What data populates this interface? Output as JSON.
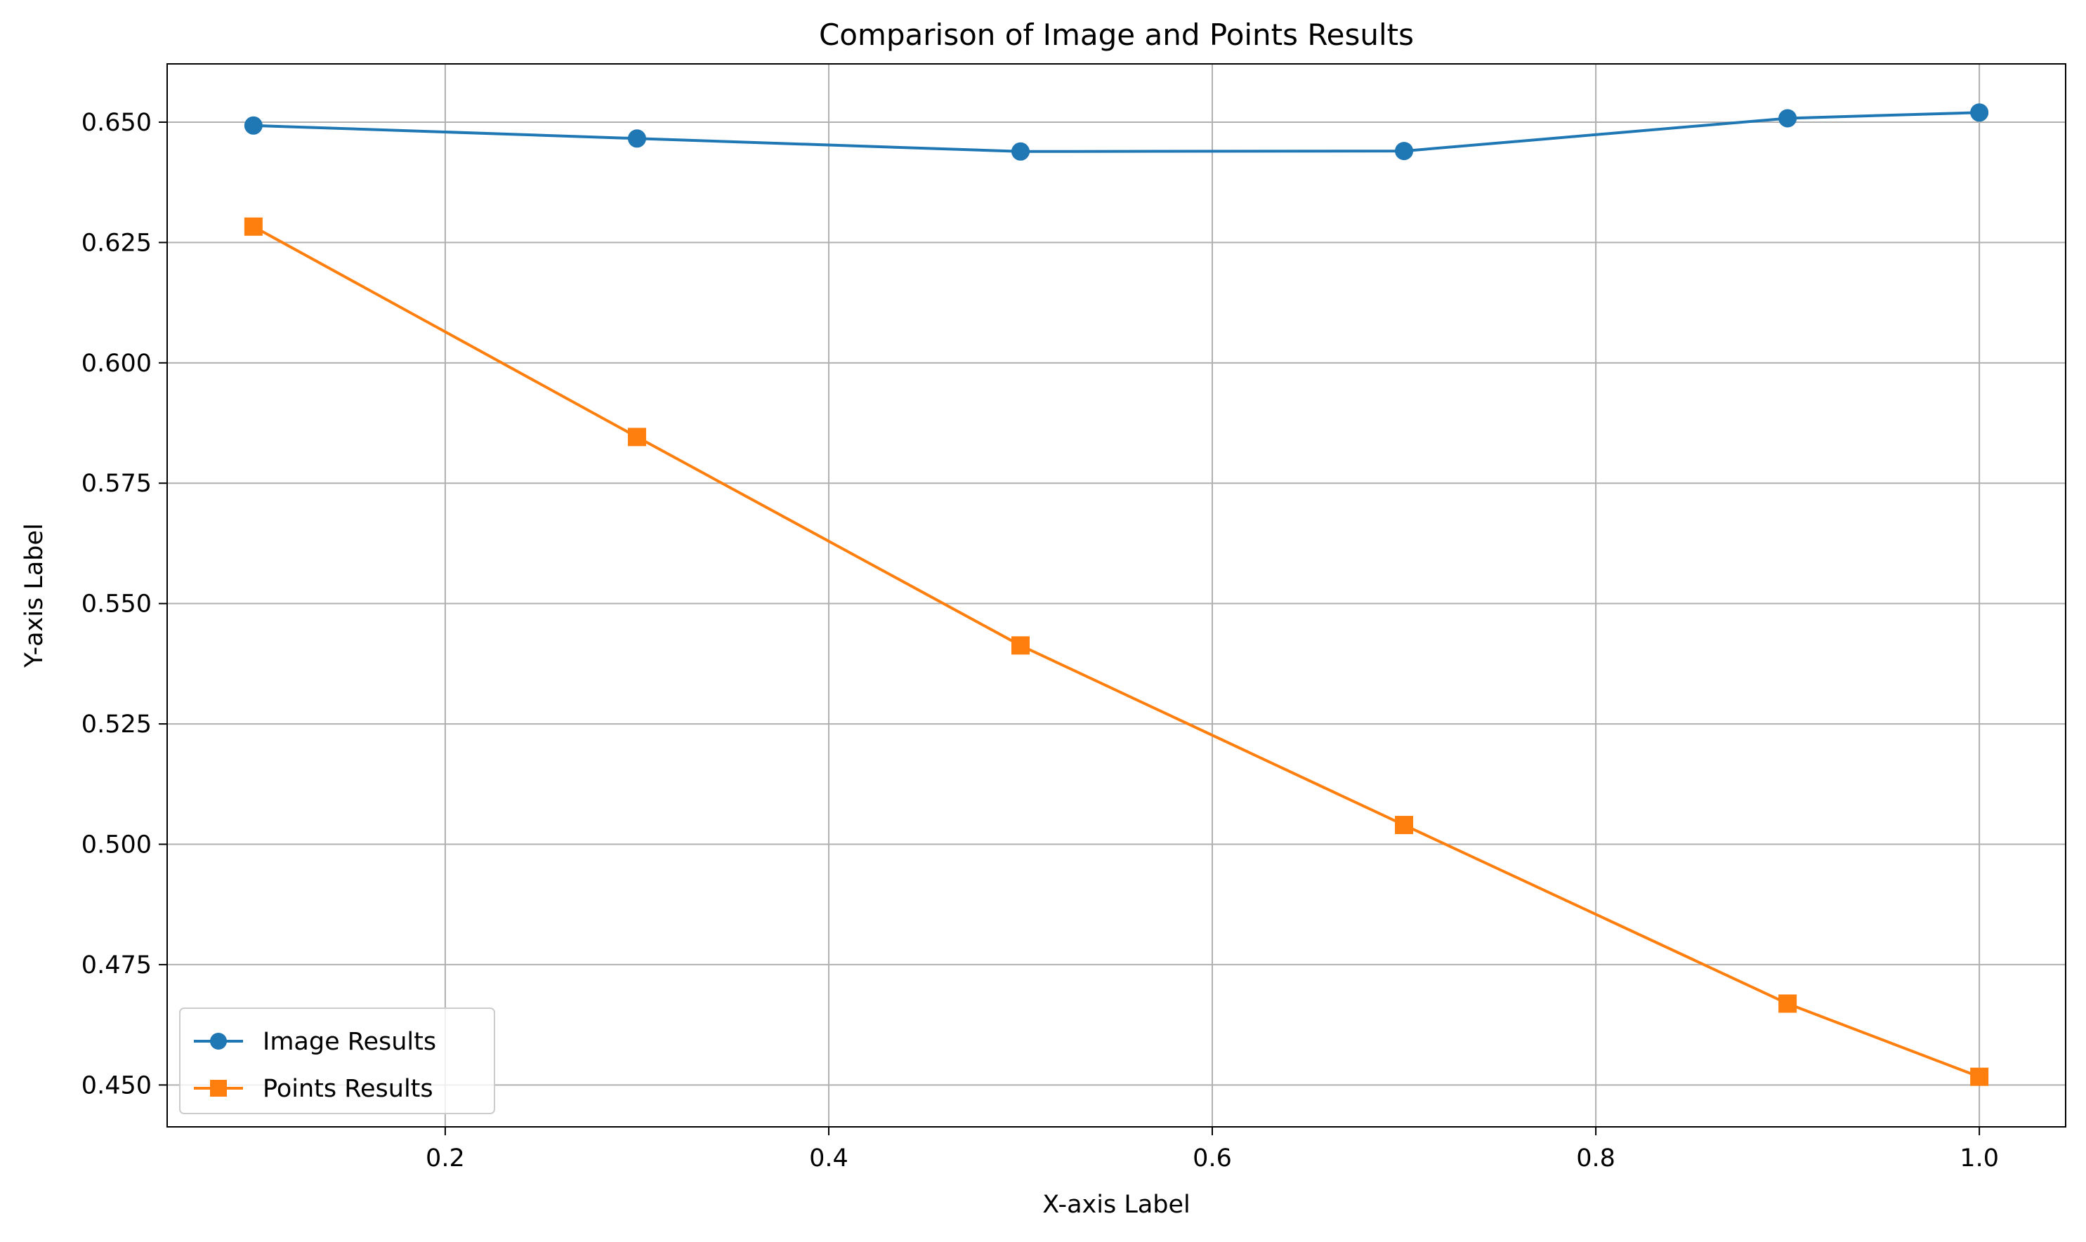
{
  "chart_data": {
    "type": "line",
    "title": "Comparison of Image and Points Results",
    "xlabel": "X-axis Label",
    "ylabel": "Y-axis Label",
    "x": [
      0.1,
      0.3,
      0.5,
      0.7,
      0.9,
      1.0
    ],
    "xlim": [
      0.055,
      1.045
    ],
    "ylim": [
      0.4413,
      0.6621
    ],
    "xticks": [
      0.2,
      0.4,
      0.6,
      0.8,
      1.0
    ],
    "xtick_labels": [
      "0.2",
      "0.4",
      "0.6",
      "0.8",
      "1.0"
    ],
    "yticks": [
      0.45,
      0.475,
      0.5,
      0.525,
      0.55,
      0.575,
      0.6,
      0.625,
      0.65
    ],
    "ytick_labels": [
      "0.450",
      "0.475",
      "0.500",
      "0.525",
      "0.550",
      "0.575",
      "0.600",
      "0.625",
      "0.650"
    ],
    "grid": true,
    "legend_position": "lower-left",
    "series": [
      {
        "name": "Image Results",
        "values": [
          0.6493,
          0.6466,
          0.6439,
          0.644,
          0.6508,
          0.652
        ],
        "color": "#1f77b4",
        "marker": "circle"
      },
      {
        "name": "Points Results",
        "values": [
          0.6283,
          0.5846,
          0.5413,
          0.504,
          0.4669,
          0.4517
        ],
        "color": "#ff7f0e",
        "marker": "square"
      }
    ]
  }
}
